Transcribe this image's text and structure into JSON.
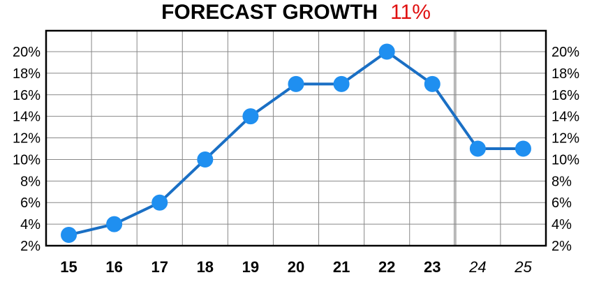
{
  "header": {
    "title": "FORECAST GROWTH",
    "growth_value": "11%"
  },
  "colors": {
    "line": "#1a6fc4",
    "marker": "#1f8ff0",
    "grid": "#888888",
    "forecast_divider": "#b8b8b8",
    "growth_value": "#e01010"
  },
  "chart_data": {
    "type": "line",
    "title": "FORECAST GROWTH",
    "x": [
      "15",
      "16",
      "17",
      "18",
      "19",
      "20",
      "21",
      "22",
      "23",
      "24",
      "25"
    ],
    "forecast_categories": [
      "24",
      "25"
    ],
    "series": [
      {
        "values": [
          3,
          4,
          6,
          10,
          14,
          17,
          17,
          20,
          17,
          11,
          11
        ]
      }
    ],
    "y_ticks": [
      "2%",
      "4%",
      "6%",
      "8%",
      "10%",
      "12%",
      "14%",
      "16%",
      "18%",
      "20%"
    ],
    "ylim": [
      2,
      20
    ],
    "grid": true,
    "y_axis_both_sides": true
  }
}
